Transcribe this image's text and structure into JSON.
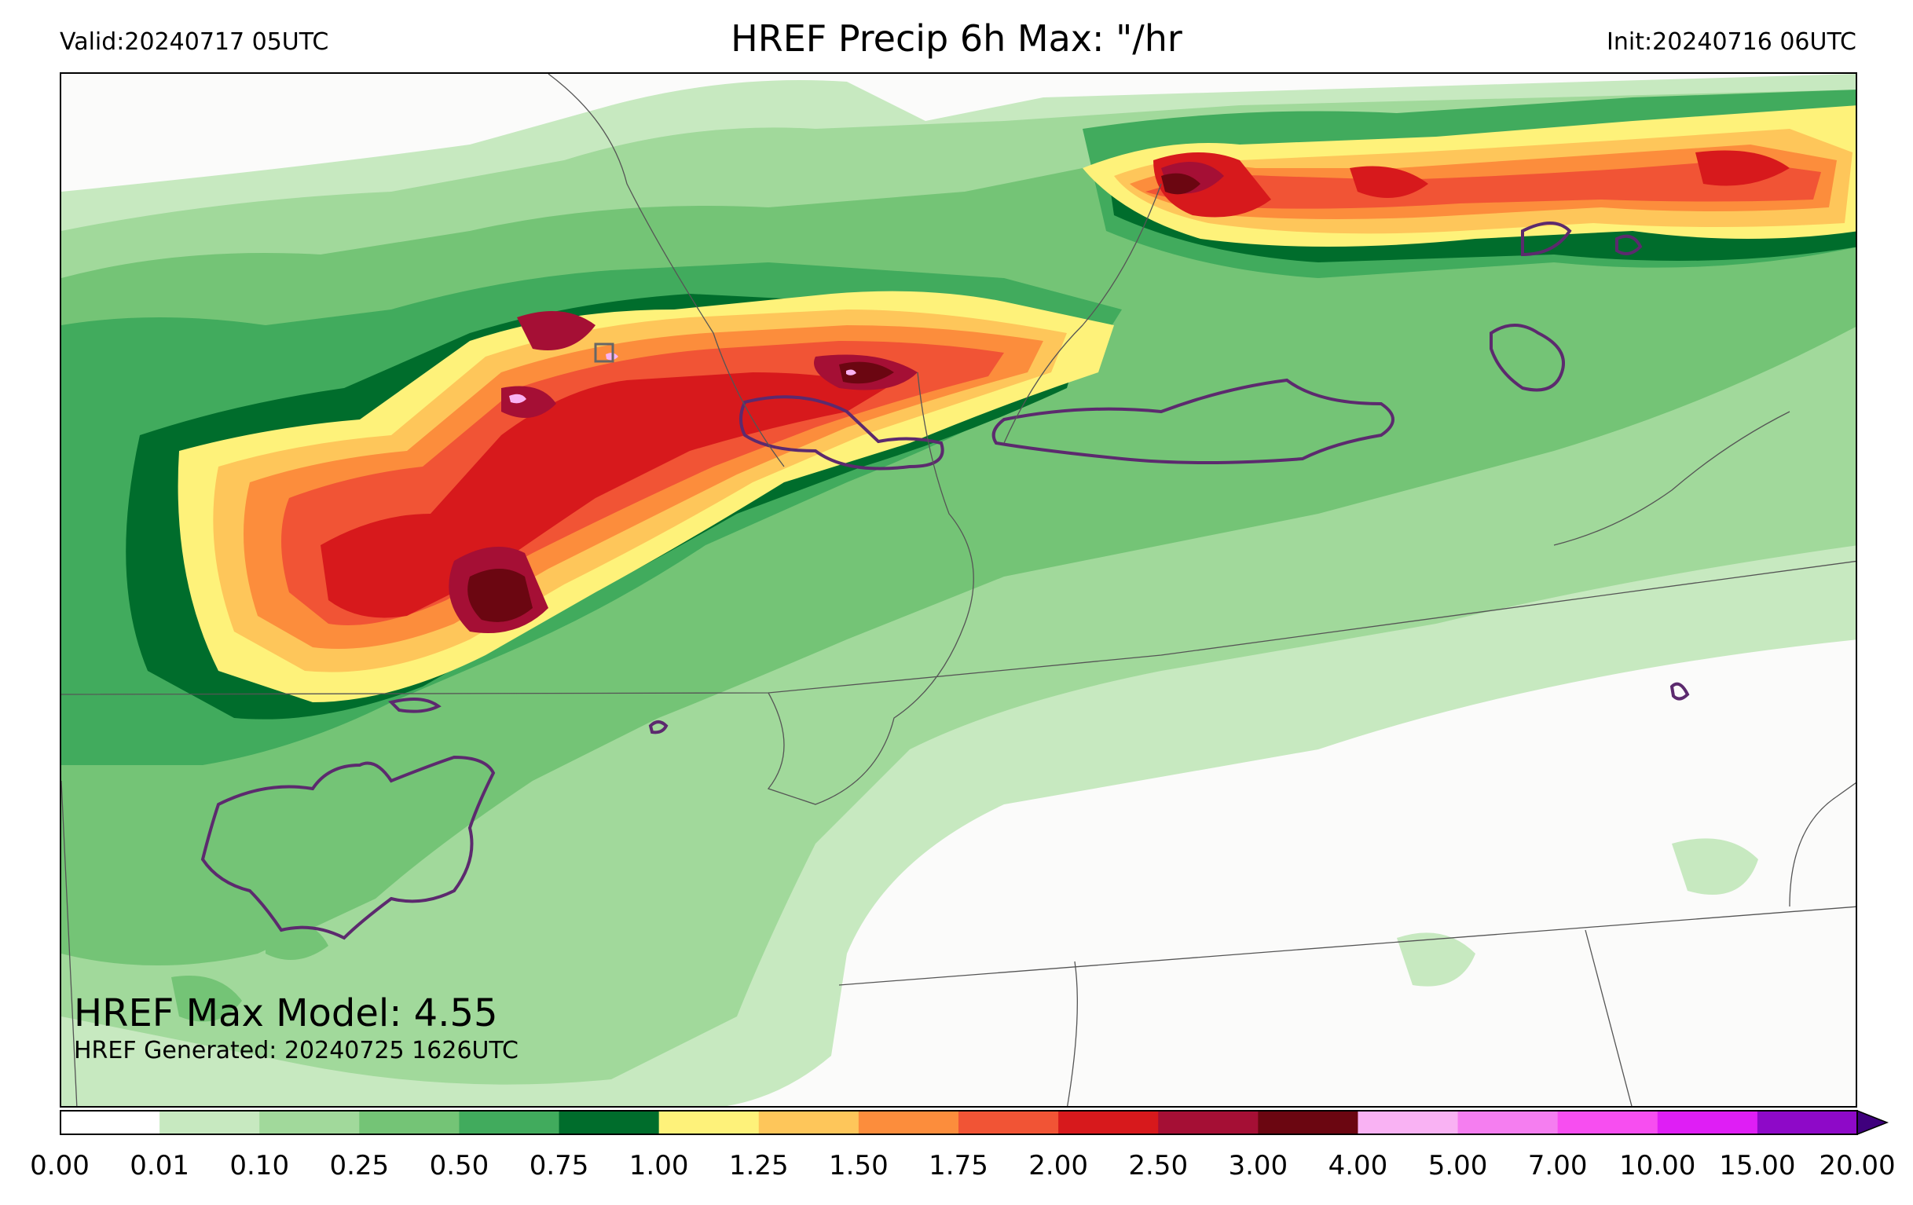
{
  "header": {
    "valid": "Valid:20240717 05UTC",
    "title": "HREF Precip 6h Max: \"/hr",
    "init": "Init:20240716 06UTC"
  },
  "annotations": {
    "max_model": "HREF Max Model: 4.55",
    "generated": "HREF Generated: 20240725 1626UTC"
  },
  "colorbar": {
    "ticks": [
      "0.00",
      "0.01",
      "0.10",
      "0.25",
      "0.50",
      "0.75",
      "1.00",
      "1.25",
      "1.50",
      "1.75",
      "2.00",
      "2.50",
      "3.00",
      "4.00",
      "5.00",
      "7.00",
      "10.00",
      "15.00",
      "20.00"
    ],
    "colors": [
      "#ffffff",
      "#c7e9c0",
      "#a1d99b",
      "#74c476",
      "#41ab5d",
      "#006d2c",
      "#fef27a",
      "#fec65a",
      "#fc8d3c",
      "#f15435",
      "#d7191c",
      "#a50f35",
      "#6b0611",
      "#f9b2f3",
      "#f57ef0",
      "#f74ef0",
      "#df1ef5",
      "#8e09c8"
    ],
    "extend_color": "#3f007d"
  },
  "map": {
    "background": "#fbfbfa",
    "outline_color": "#5c2a6e",
    "border_color": "#555555"
  }
}
